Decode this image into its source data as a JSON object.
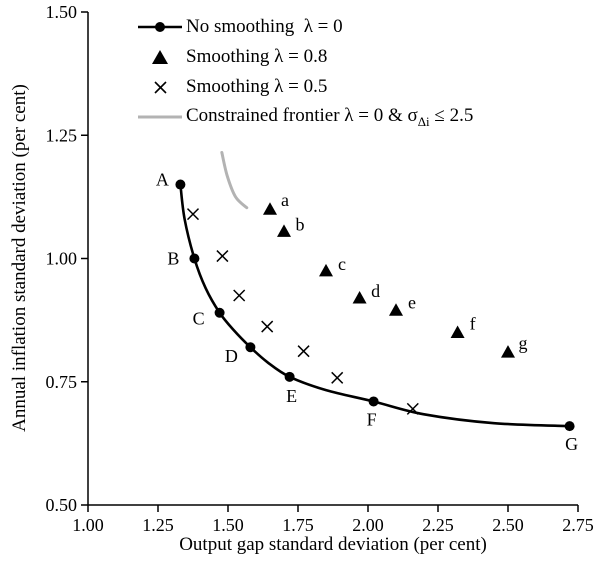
{
  "chart_data": {
    "type": "scatter",
    "title": "",
    "xlabel": "Output gap standard deviation (per cent)",
    "ylabel": "Annual inflation standard deviation (per cent)",
    "xlim": [
      1.0,
      2.75
    ],
    "ylim": [
      0.5,
      1.5
    ],
    "grid": false,
    "legend_position": "top-left-inside",
    "xticks": [
      {
        "v": 1.0,
        "label": "1.00"
      },
      {
        "v": 1.25,
        "label": "1.25"
      },
      {
        "v": 1.5,
        "label": "1.50"
      },
      {
        "v": 1.75,
        "label": "1.75"
      },
      {
        "v": 2.0,
        "label": "2.00"
      },
      {
        "v": 2.25,
        "label": "2.25"
      },
      {
        "v": 2.5,
        "label": "2.50"
      },
      {
        "v": 2.75,
        "label": "2.75"
      }
    ],
    "yticks": [
      {
        "v": 0.5,
        "label": "0.50"
      },
      {
        "v": 0.75,
        "label": "0.75"
      },
      {
        "v": 1.0,
        "label": "1.00"
      },
      {
        "v": 1.25,
        "label": "1.25"
      },
      {
        "v": 1.5,
        "label": "1.50"
      }
    ],
    "legend": {
      "items": [
        {
          "label": "No smoothing  λ = 0"
        },
        {
          "label": "Smoothing λ = 0.8"
        },
        {
          "label": "Smoothing λ = 0.5"
        },
        {
          "pre": "Constrained frontier λ = 0 & σ",
          "sub": "Δi",
          "post": " ≤ 2.5"
        }
      ]
    },
    "colors": {
      "main_line": "#000000",
      "constrained_frontier": "#b3b3b3"
    },
    "series": [
      {
        "name": "No smoothing λ = 0",
        "type": "line-markers",
        "marker": "circle",
        "color": "#000000",
        "line_points": [
          [
            1.33,
            1.15
          ],
          [
            1.345,
            1.08
          ],
          [
            1.38,
            1.0
          ],
          [
            1.42,
            0.94
          ],
          [
            1.47,
            0.89
          ],
          [
            1.52,
            0.855
          ],
          [
            1.58,
            0.82
          ],
          [
            1.64,
            0.79
          ],
          [
            1.72,
            0.76
          ],
          [
            1.85,
            0.733
          ],
          [
            2.02,
            0.71
          ],
          [
            2.2,
            0.684
          ],
          [
            2.45,
            0.666
          ],
          [
            2.72,
            0.66
          ]
        ],
        "points": [
          {
            "x": 1.33,
            "y": 1.15,
            "label": "A",
            "dx": -18,
            "dy": -5
          },
          {
            "x": 1.38,
            "y": 1.0,
            "label": "B",
            "dx": -21,
            "dy": 0
          },
          {
            "x": 1.47,
            "y": 0.89,
            "label": "C",
            "dx": -21,
            "dy": 6
          },
          {
            "x": 1.58,
            "y": 0.82,
            "label": "D",
            "dx": -19,
            "dy": 9
          },
          {
            "x": 1.72,
            "y": 0.76,
            "label": "E",
            "dx": 2,
            "dy": 19
          },
          {
            "x": 2.02,
            "y": 0.71,
            "label": "F",
            "dx": -2,
            "dy": 18
          },
          {
            "x": 2.72,
            "y": 0.66,
            "label": "G",
            "dx": 2,
            "dy": 18
          }
        ]
      },
      {
        "name": "Smoothing λ = 0.8",
        "type": "markers",
        "marker": "triangle",
        "color": "#000000",
        "points": [
          {
            "x": 1.65,
            "y": 1.1,
            "label": "a",
            "dx": 15,
            "dy": -9
          },
          {
            "x": 1.7,
            "y": 1.055,
            "label": "b",
            "dx": 16,
            "dy": -7
          },
          {
            "x": 1.85,
            "y": 0.975,
            "label": "c",
            "dx": 16,
            "dy": -7
          },
          {
            "x": 1.97,
            "y": 0.92,
            "label": "d",
            "dx": 16,
            "dy": -7
          },
          {
            "x": 2.1,
            "y": 0.895,
            "label": "e",
            "dx": 16,
            "dy": -8
          },
          {
            "x": 2.32,
            "y": 0.85,
            "label": "f",
            "dx": 15,
            "dy": -9
          },
          {
            "x": 2.5,
            "y": 0.81,
            "label": "g",
            "dx": 15,
            "dy": -9
          }
        ]
      },
      {
        "name": "Smoothing λ = 0.5",
        "type": "markers",
        "marker": "x",
        "color": "#000000",
        "points": [
          {
            "x": 1.375,
            "y": 1.09
          },
          {
            "x": 1.48,
            "y": 1.005
          },
          {
            "x": 1.54,
            "y": 0.925
          },
          {
            "x": 1.64,
            "y": 0.862
          },
          {
            "x": 1.77,
            "y": 0.812
          },
          {
            "x": 1.89,
            "y": 0.758
          },
          {
            "x": 2.16,
            "y": 0.695
          }
        ]
      },
      {
        "name": "Constrained frontier λ = 0 & σΔi ≤ 2.5",
        "type": "line",
        "color": "#b3b3b3",
        "line_points": [
          [
            1.478,
            1.215
          ],
          [
            1.497,
            1.168
          ],
          [
            1.527,
            1.125
          ],
          [
            1.567,
            1.103
          ]
        ]
      }
    ]
  }
}
